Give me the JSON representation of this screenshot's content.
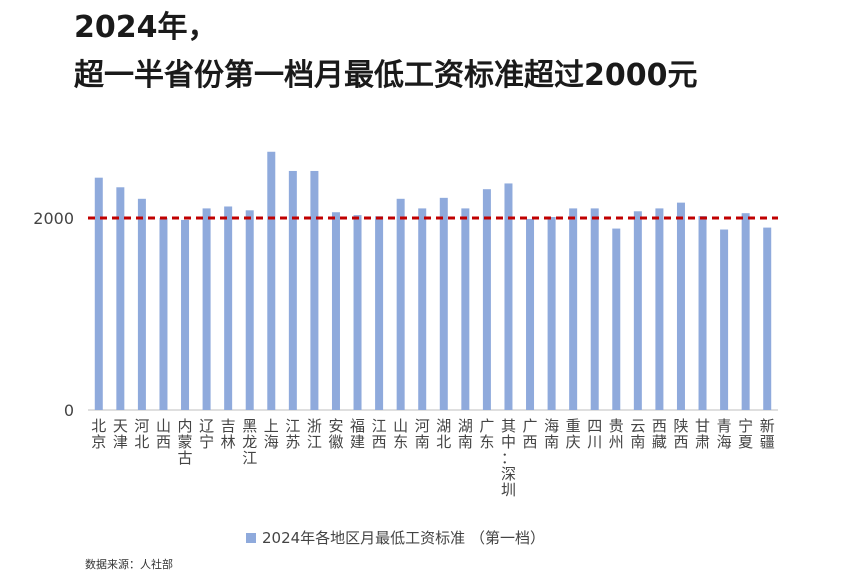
{
  "title": {
    "line1": "2024年，",
    "line2": "超一半省份第一档月最低工资标准超过2000元"
  },
  "source": "数据来源：人社部",
  "chart_data": {
    "type": "bar",
    "categories": [
      "北京",
      "天津",
      "河北",
      "山西",
      "内蒙古",
      "辽宁",
      "吉林",
      "黑龙江",
      "上海",
      "江苏",
      "浙江",
      "安徽",
      "福建",
      "江西",
      "山东",
      "河南",
      "湖北",
      "湖南",
      "广东",
      "其中：深圳",
      "广西",
      "海南",
      "重庆",
      "四川",
      "贵州",
      "云南",
      "西藏",
      "陕西",
      "甘肃",
      "青海",
      "宁夏",
      "新疆"
    ],
    "series": [
      {
        "name": "2024年各地区月最低工资标准 （第一档）",
        "values": [
          2420,
          2320,
          2200,
          2000,
          1980,
          2100,
          2120,
          2080,
          2690,
          2490,
          2490,
          2060,
          2030,
          2018,
          2200,
          2100,
          2210,
          2100,
          2300,
          2360,
          1990,
          2010,
          2100,
          2100,
          1890,
          2070,
          2100,
          2160,
          2020,
          1880,
          2050,
          1900
        ]
      }
    ],
    "y_ticks": [
      0,
      2000
    ],
    "ylim": [
      0,
      2900
    ],
    "reference_line": 2000,
    "bar_color": "#8faadc",
    "reference_color": "#c00000",
    "legend_position": "bottom"
  }
}
